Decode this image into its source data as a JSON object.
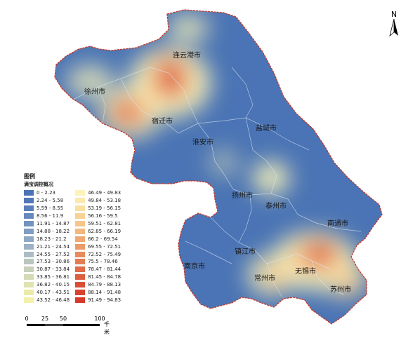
{
  "map": {
    "cities": [
      {
        "id": "lianyungang",
        "name": "连云港市"
      },
      {
        "id": "xuzhou",
        "name": "徐州市"
      },
      {
        "id": "suqian",
        "name": "宿迁市"
      },
      {
        "id": "yancheng",
        "name": "盐城市"
      },
      {
        "id": "huaian",
        "name": "淮安市"
      },
      {
        "id": "yangzhou",
        "name": "扬州市"
      },
      {
        "id": "taizhou",
        "name": "泰州市"
      },
      {
        "id": "nantong",
        "name": "南通市"
      },
      {
        "id": "zhenjiang",
        "name": "镇江市"
      },
      {
        "id": "nanjing",
        "name": "南京市"
      },
      {
        "id": "changzhou",
        "name": "常州市"
      },
      {
        "id": "wuxi",
        "name": "无锡市"
      },
      {
        "id": "suzhou",
        "name": "苏州市"
      }
    ],
    "colors": {
      "low": "#4a74b5",
      "mid": "#fbf3b8",
      "high": "#d63a2a",
      "boundary": "#c0392b",
      "internal_boundary": "#dfe8f3"
    }
  },
  "legend": {
    "title": "图例",
    "subtitle": "满宝调控概况",
    "classes": [
      {
        "label": "0 - 2.23",
        "color": "#4a74b5"
      },
      {
        "label": "2.24 - 5.58",
        "color": "#5078b6"
      },
      {
        "label": "5.59 - 8.55",
        "color": "#5a80b9"
      },
      {
        "label": "8.56 - 11.9",
        "color": "#6689bd"
      },
      {
        "label": "11.91 - 14.87",
        "color": "#7393c1"
      },
      {
        "label": "14.88 - 18.22",
        "color": "#819dc4"
      },
      {
        "label": "18.23 - 21.2",
        "color": "#8fa8c6"
      },
      {
        "label": "21.21 - 24.54",
        "color": "#9db2c6"
      },
      {
        "label": "24.55 - 27.52",
        "color": "#abbcc4"
      },
      {
        "label": "27.53 - 30.86",
        "color": "#b9c6c0"
      },
      {
        "label": "30.87 - 33.84",
        "color": "#c6d0bb"
      },
      {
        "label": "33.85 - 36.81",
        "color": "#d3dab5"
      },
      {
        "label": "36.82 - 40.15",
        "color": "#dfe3ae"
      },
      {
        "label": "40.17 - 43.51",
        "color": "#ebeaa8"
      },
      {
        "label": "43.52 - 46.48",
        "color": "#f4efac"
      },
      {
        "label": "46.49 - 49.83",
        "color": "#fbf3b8"
      },
      {
        "label": "49.84 - 53.18",
        "color": "#fbe9ad"
      },
      {
        "label": "53.19 - 56.15",
        "color": "#fadfa2"
      },
      {
        "label": "56.16 - 59.5",
        "color": "#f8d396"
      },
      {
        "label": "59.51 - 62.81",
        "color": "#f6c68a"
      },
      {
        "label": "62.85 - 66.19",
        "color": "#f3b87e"
      },
      {
        "label": "66.2 - 69.54",
        "color": "#f0a972"
      },
      {
        "label": "69.55 - 72.51",
        "color": "#ec9a67"
      },
      {
        "label": "72.52 - 75.49",
        "color": "#e88b5c"
      },
      {
        "label": "75.5 - 78.46",
        "color": "#e47c52"
      },
      {
        "label": "78.47 - 81.44",
        "color": "#e06c48"
      },
      {
        "label": "81.45 - 84.78",
        "color": "#dd5d3f"
      },
      {
        "label": "84.79 - 88.13",
        "color": "#da4e36"
      },
      {
        "label": "88.14 - 91.48",
        "color": "#d8432f"
      },
      {
        "label": "91.49 - 94.83",
        "color": "#d63a2a"
      }
    ]
  },
  "scalebar": {
    "ticks": [
      "0",
      "25",
      "50",
      "100"
    ],
    "unit": "千米"
  },
  "north_arrow": {
    "letter": "N",
    "icon": "north-arrow-icon"
  }
}
